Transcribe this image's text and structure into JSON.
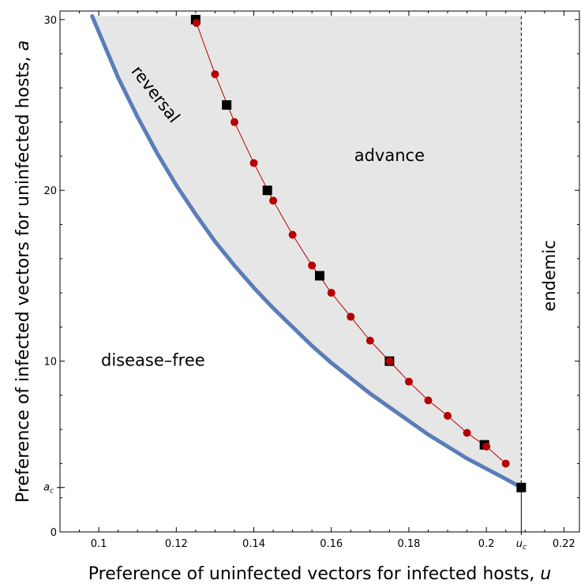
{
  "chart_data": {
    "type": "scatter",
    "xlabel": "Preference of uninfected vectors for infected hosts,",
    "xlabel_symbol": "u",
    "ylabel": "Preference of infected vectors for uninfected hosts,",
    "ylabel_symbol": "a",
    "xlim": [
      0.09,
      0.224
    ],
    "ylim": [
      0,
      30.5
    ],
    "x_ticks": [
      {
        "value": 0.1,
        "label": "0.1"
      },
      {
        "value": 0.12,
        "label": "0.12"
      },
      {
        "value": 0.14,
        "label": "0.14"
      },
      {
        "value": 0.16,
        "label": "0.16"
      },
      {
        "value": 0.18,
        "label": "0.18"
      },
      {
        "value": 0.2,
        "label": "0.2"
      },
      {
        "value": 0.22,
        "label": "0.22"
      }
    ],
    "x_special_tick": {
      "value": 0.209,
      "base": "u",
      "sub": "c"
    },
    "y_ticks": [
      {
        "value": 0,
        "label": "0"
      },
      {
        "value": 10,
        "label": "10"
      },
      {
        "value": 20,
        "label": "20"
      },
      {
        "value": 30,
        "label": "30"
      }
    ],
    "y_special_tick": {
      "value": 2.6,
      "base": "a",
      "sub": "c"
    },
    "critical_point": {
      "u": 0.209,
      "a": 2.6
    },
    "boundary_curve": {
      "color": "#5b7db8",
      "points": [
        [
          0.0983,
          30.2
        ],
        [
          0.105,
          26.6
        ],
        [
          0.11,
          24.3
        ],
        [
          0.115,
          22.2
        ],
        [
          0.12,
          20.3
        ],
        [
          0.125,
          18.6
        ],
        [
          0.13,
          17.0
        ],
        [
          0.135,
          15.6
        ],
        [
          0.14,
          14.3
        ],
        [
          0.145,
          13.1
        ],
        [
          0.15,
          12.0
        ],
        [
          0.155,
          10.9
        ],
        [
          0.16,
          9.9
        ],
        [
          0.165,
          9.0
        ],
        [
          0.17,
          8.1
        ],
        [
          0.175,
          7.3
        ],
        [
          0.18,
          6.5
        ],
        [
          0.185,
          5.7
        ],
        [
          0.19,
          5.0
        ],
        [
          0.195,
          4.3
        ],
        [
          0.2,
          3.7
        ],
        [
          0.205,
          3.1
        ],
        [
          0.209,
          2.6
        ]
      ]
    },
    "series": [
      {
        "marker": "circle",
        "color": "#b40000",
        "points": [
          [
            0.1252,
            29.8
          ],
          [
            0.13,
            26.8
          ],
          [
            0.135,
            24.0
          ],
          [
            0.14,
            21.6
          ],
          [
            0.145,
            19.4
          ],
          [
            0.15,
            17.4
          ],
          [
            0.155,
            15.6
          ],
          [
            0.16,
            14.0
          ],
          [
            0.165,
            12.6
          ],
          [
            0.17,
            11.2
          ],
          [
            0.175,
            10.0
          ],
          [
            0.18,
            8.8
          ],
          [
            0.185,
            7.7
          ],
          [
            0.19,
            6.8
          ],
          [
            0.195,
            5.8
          ],
          [
            0.2,
            5.0
          ],
          [
            0.205,
            4.0
          ]
        ]
      },
      {
        "marker": "square",
        "color": "#000000",
        "points": [
          [
            0.125,
            30.0
          ],
          [
            0.133,
            25.0
          ],
          [
            0.1435,
            20.0
          ],
          [
            0.157,
            15.0
          ],
          [
            0.175,
            10.0
          ],
          [
            0.1995,
            5.1
          ],
          [
            0.209,
            2.6
          ]
        ]
      }
    ],
    "regions": [
      {
        "name": "advance",
        "fill": "#e6e6e6"
      }
    ],
    "annotations": [
      {
        "text": "reversal",
        "x": 0.1145,
        "y": 25.6,
        "rotate": 52
      },
      {
        "text": "advance",
        "x": 0.175,
        "y": 22.0,
        "rotate": 0
      },
      {
        "text": "disease–free",
        "x": 0.114,
        "y": 10.0,
        "rotate": 0
      },
      {
        "text": "endemic",
        "x": 0.2165,
        "y": 15.0,
        "rotate": -90
      }
    ]
  }
}
